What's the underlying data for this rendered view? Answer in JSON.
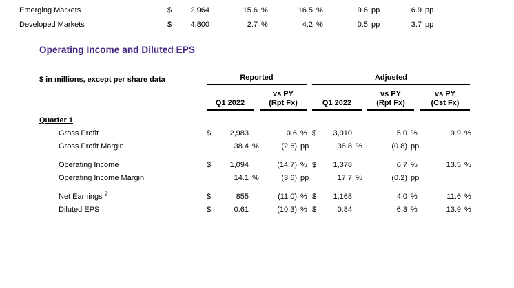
{
  "colors": {
    "accent": "#412380",
    "text": "#000000",
    "rule": "#000000"
  },
  "top_table": {
    "rows": [
      {
        "label": "Emerging Markets",
        "c1": {
          "sym": "$",
          "val": "2,964"
        },
        "c2": {
          "val": "15.6",
          "unit": "%"
        },
        "c3": {
          "val": "16.5",
          "unit": "%"
        },
        "c4": {
          "val": "9.6",
          "unit": "pp"
        },
        "c5": {
          "val": "6.9",
          "unit": "pp"
        }
      },
      {
        "label": "Developed Markets",
        "c1": {
          "sym": "$",
          "val": "4,800"
        },
        "c2": {
          "val": "2.7",
          "unit": "%"
        },
        "c3": {
          "val": "4.2",
          "unit": "%"
        },
        "c4": {
          "val": "0.5",
          "unit": "pp"
        },
        "c5": {
          "val": "3.7",
          "unit": "pp"
        }
      }
    ]
  },
  "section_title": "Operating Income and Diluted EPS",
  "table": {
    "units_note": "$ in millions, except per share data",
    "group_headers": {
      "reported": "Reported",
      "adjusted": "Adjusted"
    },
    "col_headers": [
      {
        "line1": "",
        "line2": "Q1 2022"
      },
      {
        "line1": "vs PY",
        "line2": "(Rpt Fx)"
      },
      {
        "line1": "",
        "line2": "Q1 2022"
      },
      {
        "line1": "vs PY",
        "line2": "(Rpt Fx)"
      },
      {
        "line1": "vs PY",
        "line2": "(Cst Fx)"
      }
    ],
    "section_label": "Quarter 1",
    "rows": [
      {
        "label": "Gross Profit",
        "c1": {
          "sym": "$",
          "val": "2,983"
        },
        "c2": {
          "val": "0.6",
          "unit": "%"
        },
        "c3": {
          "sym": "$",
          "val": "3,010"
        },
        "c4": {
          "val": "5.0",
          "unit": "%"
        },
        "c5": {
          "val": "9.9",
          "unit": "%"
        }
      },
      {
        "label": "Gross Profit Margin",
        "c1": {
          "val": "38.4",
          "unit": "%"
        },
        "c2": {
          "val": "(2.6)",
          "unit": "pp"
        },
        "c3": {
          "val": "38.8",
          "unit": "%"
        },
        "c4": {
          "val": "(0.8)",
          "unit": "pp"
        },
        "c5": {}
      },
      {
        "label": "Operating Income",
        "c1": {
          "sym": "$",
          "val": "1,094"
        },
        "c2": {
          "val": "(14.7)",
          "unit": "%"
        },
        "c3": {
          "sym": "$",
          "val": "1,378"
        },
        "c4": {
          "val": "6.7",
          "unit": "%"
        },
        "c5": {
          "val": "13.5",
          "unit": "%"
        }
      },
      {
        "label": "Operating Income Margin",
        "c1": {
          "val": "14.1",
          "unit": "%"
        },
        "c2": {
          "val": "(3.6)",
          "unit": "pp"
        },
        "c3": {
          "val": "17.7",
          "unit": "%"
        },
        "c4": {
          "val": "(0.2)",
          "unit": "pp"
        },
        "c5": {}
      },
      {
        "label": "Net Earnings",
        "sup": "2",
        "c1": {
          "sym": "$",
          "val": "855"
        },
        "c2": {
          "val": "(11.0)",
          "unit": "%"
        },
        "c3": {
          "sym": "$",
          "val": "1,168"
        },
        "c4": {
          "val": "4.0",
          "unit": "%"
        },
        "c5": {
          "val": "11.6",
          "unit": "%"
        }
      },
      {
        "label": "Diluted EPS",
        "c1": {
          "sym": "$",
          "val": "0.61"
        },
        "c2": {
          "val": "(10.3)",
          "unit": "%"
        },
        "c3": {
          "sym": "$",
          "val": "0.84"
        },
        "c4": {
          "val": "6.3",
          "unit": "%"
        },
        "c5": {
          "val": "13.9",
          "unit": "%"
        }
      }
    ]
  }
}
